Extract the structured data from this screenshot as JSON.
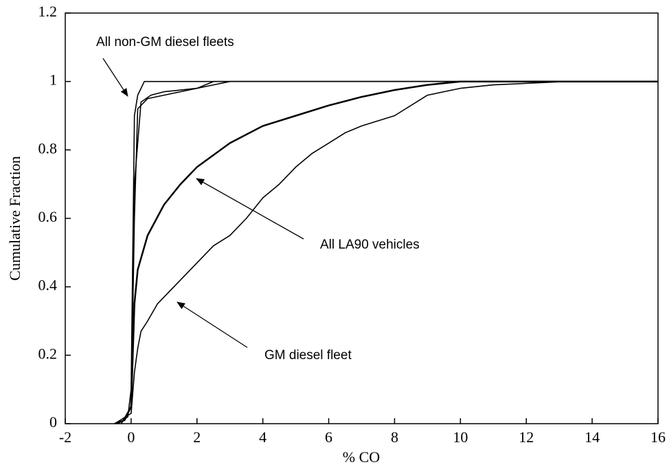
{
  "chart_data": {
    "type": "line",
    "x_label": "% CO",
    "y_label": "Cumulative Fraction",
    "annotations": [
      "All non-GM diesel fleets",
      "All LA90 vehicles",
      "GM diesel fleet"
    ],
    "xlim": [
      -2,
      16
    ],
    "xticks": [
      -2,
      0,
      2,
      4,
      6,
      8,
      10,
      12,
      14,
      16
    ],
    "ylim": [
      0,
      1.2
    ],
    "yticks": [
      0,
      0.2,
      0.4,
      0.6,
      0.8,
      1,
      1.2
    ],
    "grid": false,
    "series": [
      {
        "color": "#000000",
        "x": [
          -0.4,
          -0.1,
          0,
          0.05,
          0.1,
          0.2,
          0.4,
          16
        ],
        "values": [
          0,
          0.02,
          0.1,
          0.5,
          0.9,
          0.96,
          1.0,
          1.0
        ]
      },
      {
        "color": "#000000",
        "x": [
          -0.3,
          0,
          0.1,
          0.2,
          0.5,
          1,
          1.5,
          2,
          2.5,
          16
        ],
        "values": [
          0,
          0.05,
          0.6,
          0.92,
          0.95,
          0.96,
          0.97,
          0.98,
          1.0,
          1.0
        ]
      },
      {
        "color": "#000000",
        "x": [
          -0.3,
          0,
          0.1,
          0.3,
          0.6,
          1,
          2,
          2.5,
          3,
          16
        ],
        "values": [
          0,
          0.05,
          0.7,
          0.94,
          0.96,
          0.97,
          0.98,
          0.99,
          1.0,
          1.0
        ]
      },
      {
        "color": "#000000",
        "x": [
          -0.5,
          -0.2,
          0,
          0.05,
          0.1,
          0.2,
          0.5,
          1,
          1.5,
          2,
          3,
          4,
          5,
          6,
          7,
          8,
          9,
          10,
          11,
          12,
          16
        ],
        "values": [
          0,
          0.01,
          0.05,
          0.2,
          0.35,
          0.45,
          0.55,
          0.64,
          0.7,
          0.75,
          0.82,
          0.87,
          0.9,
          0.93,
          0.955,
          0.975,
          0.99,
          1.0,
          1.0,
          1.0,
          1.0
        ]
      },
      {
        "color": "#000000",
        "x": [
          -0.5,
          0,
          0.1,
          0.2,
          0.3,
          0.5,
          0.8,
          1,
          1.5,
          2,
          2.5,
          3,
          3.5,
          4,
          4.5,
          5,
          5.5,
          6,
          6.5,
          7,
          8,
          9,
          10,
          11,
          13.2
        ],
        "values": [
          0,
          0.03,
          0.15,
          0.22,
          0.27,
          0.3,
          0.35,
          0.37,
          0.42,
          0.47,
          0.52,
          0.55,
          0.6,
          0.66,
          0.7,
          0.75,
          0.79,
          0.82,
          0.85,
          0.87,
          0.9,
          0.96,
          0.98,
          0.99,
          1.0
        ]
      }
    ]
  }
}
